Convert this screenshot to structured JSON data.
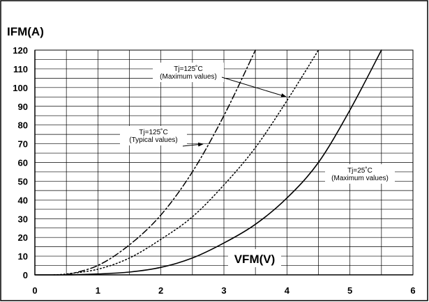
{
  "chart_data": {
    "type": "line",
    "ylabel": "IFM(A)",
    "xlabel": "VFM(V)",
    "xlim": [
      0,
      6
    ],
    "ylim": [
      0,
      120
    ],
    "x_ticks": [
      "0",
      "1",
      "2",
      "3",
      "4",
      "5",
      "6"
    ],
    "y_ticks": [
      "0",
      "10",
      "20",
      "30",
      "40",
      "50",
      "60",
      "70",
      "80",
      "90",
      "100",
      "110",
      "120"
    ],
    "grid": true,
    "series": [
      {
        "style": "solid",
        "color": "#000000",
        "x": [
          0.0,
          0.5,
          1.0,
          1.5,
          2.0,
          2.5,
          3.0,
          3.5,
          4.0,
          4.5,
          5.0,
          5.5
        ],
        "y": [
          0,
          0,
          0.5,
          1.5,
          4,
          9,
          17,
          27,
          41,
          60,
          88,
          120
        ]
      },
      {
        "style": "dotted",
        "color": "#000000",
        "x": [
          0.3,
          0.5,
          1.0,
          1.5,
          2.0,
          2.5,
          3.0,
          3.5,
          4.0,
          4.5
        ],
        "y": [
          0,
          0.5,
          3,
          9,
          19,
          31,
          48,
          68,
          93,
          120
        ]
      },
      {
        "style": "dash-dot",
        "color": "#000000",
        "x": [
          0.5,
          1.0,
          1.5,
          2.0,
          2.5,
          3.0,
          3.5
        ],
        "y": [
          0,
          5,
          16,
          32,
          55,
          85,
          120
        ]
      }
    ],
    "annotations": [
      {
        "lines": [
          "Tj=125˚C",
          "(Maximum values)"
        ]
      },
      {
        "lines": [
          "Tj=125˚C",
          "(Typical values)"
        ]
      },
      {
        "lines": [
          "Tj=25˚C",
          "(Maximum values)"
        ]
      }
    ]
  }
}
